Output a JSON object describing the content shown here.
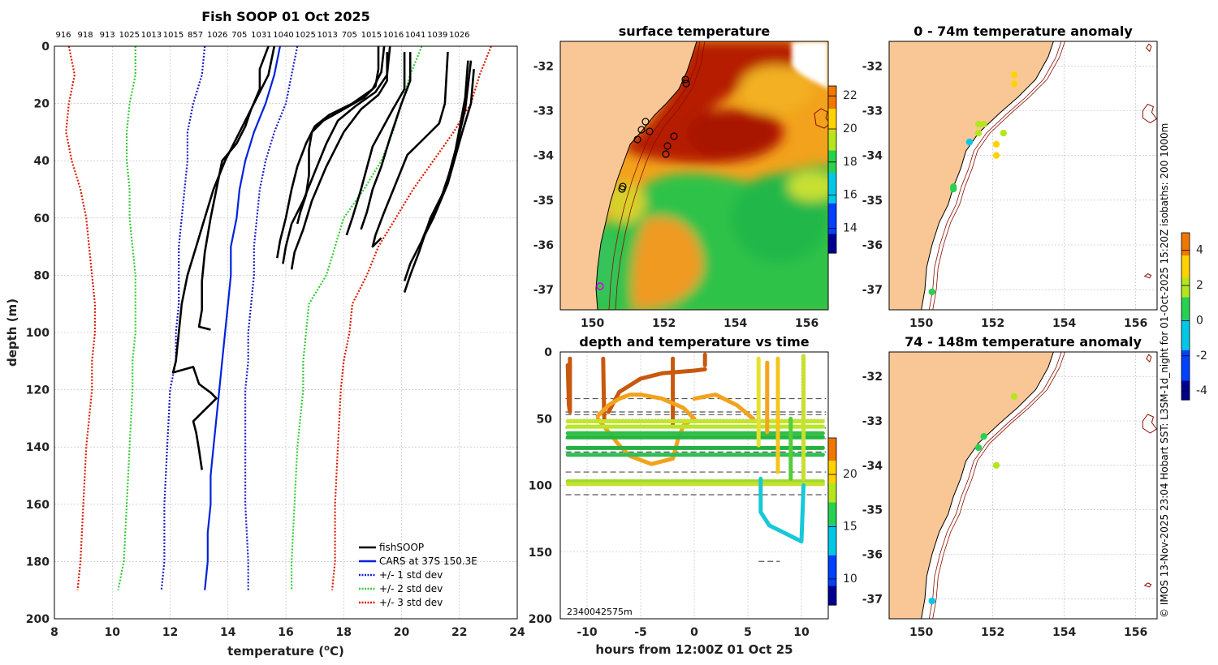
{
  "colors": {
    "land": "#f9c796",
    "cars": "#0022dd",
    "std1": "#1b1bcc",
    "std2": "#33cc33",
    "std3": "#dd1a00",
    "fish": "#000000"
  },
  "main_title": "Fish SOOP 01 Oct 2025",
  "top_numbers": [
    "916",
    "918",
    "913",
    "1025",
    "1013",
    "1015",
    "857",
    "1026",
    "705",
    "1031",
    "1040",
    "1025",
    "1013",
    "705",
    "1015",
    "1016",
    "1041",
    "1039",
    "1026"
  ],
  "legend": {
    "fish": "fishSOOP",
    "cars": "CARS at 37S 150.3E",
    "std1": "+/- 1 std dev",
    "std2": "+/- 2 std dev",
    "std3": "+/- 3 std dev"
  },
  "side_text": "© IMOS 13-Nov-2025 23:04 Hobart SST: L3SM-1d_night for 01-Oct-2025 15:20Z isobaths: 200  1000m",
  "chart_data": [
    {
      "type": "line",
      "title": "Fish SOOP 01 Oct 2025",
      "xlabel": "temperature (°C)",
      "xlabel_pre": "temperature (",
      "xlabel_sup": "o",
      "xlabel_post": "C)",
      "ylabel": "depth (m)",
      "xlim": [
        8,
        24
      ],
      "ylim": [
        0,
        200
      ],
      "y_reversed": true,
      "xticks": [
        "8",
        "10",
        "12",
        "14",
        "16",
        "18",
        "20",
        "22",
        "24"
      ],
      "yticks": [
        "0",
        "20",
        "40",
        "60",
        "80",
        "100",
        "120",
        "140",
        "160",
        "180",
        "200"
      ],
      "cars": [
        [
          15.8,
          0
        ],
        [
          15.6,
          10
        ],
        [
          15.3,
          20
        ],
        [
          14.9,
          30
        ],
        [
          14.6,
          40
        ],
        [
          14.4,
          50
        ],
        [
          14.3,
          60
        ],
        [
          14.1,
          70
        ],
        [
          14.1,
          80
        ],
        [
          14.0,
          90
        ],
        [
          13.9,
          100
        ],
        [
          13.8,
          110
        ],
        [
          13.7,
          120
        ],
        [
          13.6,
          130
        ],
        [
          13.5,
          140
        ],
        [
          13.4,
          150
        ],
        [
          13.4,
          160
        ],
        [
          13.3,
          170
        ],
        [
          13.3,
          180
        ],
        [
          13.2,
          190
        ]
      ],
      "std1": [
        [
          16.4,
          0
        ],
        [
          16.2,
          10
        ],
        [
          16.0,
          20
        ],
        [
          15.6,
          30
        ],
        [
          15.3,
          40
        ],
        [
          15.1,
          50
        ],
        [
          15.0,
          60
        ],
        [
          14.9,
          70
        ],
        [
          14.9,
          80
        ],
        [
          14.8,
          90
        ],
        [
          14.7,
          100
        ],
        [
          14.7,
          110
        ],
        [
          14.6,
          120
        ],
        [
          14.6,
          140
        ],
        [
          14.6,
          160
        ],
        [
          14.7,
          180
        ],
        [
          14.7,
          190
        ]
      ],
      "std1_lo": [
        [
          13.2,
          0
        ],
        [
          13.1,
          10
        ],
        [
          12.8,
          20
        ],
        [
          12.6,
          30
        ],
        [
          12.6,
          40
        ],
        [
          12.5,
          50
        ],
        [
          12.4,
          60
        ],
        [
          12.3,
          70
        ],
        [
          12.3,
          80
        ],
        [
          12.3,
          90
        ],
        [
          12.2,
          100
        ],
        [
          12.2,
          110
        ],
        [
          12.0,
          120
        ],
        [
          11.9,
          140
        ],
        [
          11.8,
          160
        ],
        [
          11.8,
          180
        ],
        [
          11.7,
          190
        ]
      ],
      "std2": [
        [
          20.7,
          0
        ],
        [
          20.3,
          10
        ],
        [
          20.0,
          20
        ],
        [
          19.7,
          30
        ],
        [
          19.3,
          40
        ],
        [
          18.7,
          50
        ],
        [
          18.0,
          60
        ],
        [
          17.7,
          70
        ],
        [
          17.4,
          80
        ],
        [
          16.8,
          90
        ],
        [
          16.7,
          100
        ],
        [
          16.6,
          110
        ],
        [
          16.6,
          120
        ],
        [
          16.4,
          140
        ],
        [
          16.3,
          160
        ],
        [
          16.2,
          180
        ],
        [
          16.2,
          190
        ]
      ],
      "std2_lo": [
        [
          10.8,
          0
        ],
        [
          10.8,
          10
        ],
        [
          10.6,
          20
        ],
        [
          10.5,
          30
        ],
        [
          10.5,
          40
        ],
        [
          10.6,
          50
        ],
        [
          10.6,
          60
        ],
        [
          10.7,
          70
        ],
        [
          10.8,
          80
        ],
        [
          10.8,
          90
        ],
        [
          10.8,
          100
        ],
        [
          10.7,
          110
        ],
        [
          10.7,
          120
        ],
        [
          10.6,
          140
        ],
        [
          10.5,
          160
        ],
        [
          10.4,
          180
        ],
        [
          10.2,
          190
        ]
      ],
      "std3": [
        [
          23.1,
          0
        ],
        [
          22.7,
          10
        ],
        [
          22.4,
          20
        ],
        [
          21.8,
          30
        ],
        [
          21.1,
          40
        ],
        [
          20.4,
          50
        ],
        [
          19.8,
          60
        ],
        [
          19.2,
          70
        ],
        [
          18.8,
          80
        ],
        [
          18.3,
          90
        ],
        [
          18.2,
          100
        ],
        [
          18.0,
          110
        ],
        [
          17.9,
          120
        ],
        [
          17.8,
          140
        ],
        [
          17.7,
          160
        ],
        [
          17.7,
          180
        ],
        [
          17.6,
          190
        ]
      ],
      "std3_lo": [
        [
          8.5,
          0
        ],
        [
          8.7,
          10
        ],
        [
          8.5,
          20
        ],
        [
          8.4,
          30
        ],
        [
          8.6,
          40
        ],
        [
          8.9,
          50
        ],
        [
          9.1,
          60
        ],
        [
          9.2,
          70
        ],
        [
          9.3,
          80
        ],
        [
          9.4,
          90
        ],
        [
          9.4,
          100
        ],
        [
          9.3,
          110
        ],
        [
          9.3,
          120
        ],
        [
          9.1,
          140
        ],
        [
          9.0,
          160
        ],
        [
          8.9,
          180
        ],
        [
          8.8,
          190
        ]
      ],
      "fish": [
        [
          [
            19.2,
            0
          ],
          [
            19.2,
            8
          ],
          [
            19.1,
            14
          ],
          [
            18.7,
            18
          ],
          [
            18.0,
            22
          ],
          [
            17.3,
            26
          ],
          [
            16.9,
            30
          ],
          [
            16.8,
            36
          ],
          [
            16.8,
            45
          ],
          [
            16.7,
            52
          ],
          [
            16.5,
            58
          ],
          [
            16.4,
            62
          ]
        ],
        [
          [
            19.4,
            0
          ],
          [
            19.3,
            9
          ],
          [
            19.0,
            15
          ],
          [
            18.3,
            20
          ],
          [
            17.5,
            24
          ],
          [
            17.0,
            28
          ],
          [
            16.7,
            34
          ],
          [
            16.4,
            42
          ],
          [
            16.2,
            50
          ],
          [
            16.0,
            60
          ],
          [
            15.8,
            68
          ],
          [
            15.7,
            74
          ]
        ],
        [
          [
            19.6,
            0
          ],
          [
            19.5,
            10
          ],
          [
            19.1,
            16
          ],
          [
            18.4,
            21
          ],
          [
            17.8,
            26
          ],
          [
            17.4,
            34
          ],
          [
            17.0,
            44
          ],
          [
            16.6,
            54
          ],
          [
            16.2,
            62
          ],
          [
            16.0,
            70
          ],
          [
            15.9,
            76
          ]
        ],
        [
          [
            19.5,
            2
          ],
          [
            19.5,
            12
          ],
          [
            19.2,
            17
          ],
          [
            18.6,
            22
          ],
          [
            18.0,
            30
          ],
          [
            17.4,
            42
          ],
          [
            16.9,
            54
          ],
          [
            16.6,
            64
          ],
          [
            16.3,
            72
          ],
          [
            16.2,
            78
          ]
        ],
        [
          [
            15.4,
            0
          ],
          [
            15.1,
            8
          ],
          [
            15.1,
            15
          ],
          [
            14.8,
            22
          ],
          [
            14.6,
            28
          ],
          [
            14.3,
            34
          ],
          [
            13.8,
            40
          ],
          [
            13.6,
            50
          ],
          [
            13.4,
            60
          ],
          [
            13.2,
            72
          ],
          [
            13.1,
            82
          ],
          [
            13.1,
            92
          ],
          [
            13.0,
            98
          ],
          [
            13.4,
            99
          ]
        ],
        [
          [
            20.1,
            2
          ],
          [
            20.1,
            15
          ],
          [
            19.7,
            22
          ],
          [
            19.0,
            35
          ],
          [
            18.6,
            50
          ],
          [
            18.3,
            60
          ],
          [
            18.1,
            66
          ]
        ],
        [
          [
            20.3,
            2
          ],
          [
            20.3,
            12
          ],
          [
            20.0,
            20
          ],
          [
            19.6,
            32
          ],
          [
            19.3,
            42
          ],
          [
            19.0,
            50
          ],
          [
            18.8,
            58
          ],
          [
            18.6,
            64
          ]
        ],
        [
          [
            21.6,
            2
          ],
          [
            21.5,
            20
          ],
          [
            21.3,
            27
          ],
          [
            20.8,
            32
          ],
          [
            20.2,
            38
          ],
          [
            19.8,
            48
          ],
          [
            19.4,
            58
          ],
          [
            19.1,
            66
          ],
          [
            19.0,
            70
          ],
          [
            19.3,
            67
          ]
        ],
        [
          [
            22.3,
            5
          ],
          [
            22.2,
            18
          ],
          [
            21.8,
            40
          ],
          [
            21.3,
            55
          ],
          [
            20.9,
            63
          ],
          [
            20.7,
            68
          ]
        ],
        [
          [
            22.4,
            5
          ],
          [
            22.2,
            22
          ],
          [
            21.9,
            35
          ],
          [
            21.5,
            50
          ],
          [
            21.0,
            60
          ],
          [
            20.6,
            72
          ],
          [
            20.3,
            80
          ],
          [
            20.1,
            86
          ]
        ],
        [
          [
            22.5,
            8
          ],
          [
            22.4,
            20
          ],
          [
            22.1,
            30
          ],
          [
            21.6,
            48
          ],
          [
            21.1,
            60
          ],
          [
            20.6,
            70
          ],
          [
            20.3,
            76
          ],
          [
            20.1,
            82
          ]
        ],
        [
          [
            15.6,
            0
          ],
          [
            15.4,
            10
          ],
          [
            14.9,
            20
          ],
          [
            14.4,
            30
          ],
          [
            13.9,
            40
          ],
          [
            13.5,
            50
          ],
          [
            13.2,
            60
          ],
          [
            12.9,
            70
          ],
          [
            12.6,
            80
          ],
          [
            12.4,
            90
          ],
          [
            12.3,
            100
          ],
          [
            12.2,
            110
          ],
          [
            12.1,
            114
          ],
          [
            12.8,
            112
          ],
          [
            13.0,
            118
          ],
          [
            13.4,
            121
          ],
          [
            13.6,
            123
          ],
          [
            13.4,
            125
          ],
          [
            13.1,
            128
          ],
          [
            12.8,
            131
          ],
          [
            12.9,
            135
          ],
          [
            13.0,
            141
          ],
          [
            13.1,
            148
          ]
        ]
      ]
    },
    {
      "type": "heatmap",
      "title": "surface temperature",
      "xticks": [
        "150",
        "152",
        "154",
        "156"
      ],
      "yticks": [
        "-32",
        "-33",
        "-34",
        "-35",
        "-36",
        "-37"
      ],
      "xlim": [
        149.1,
        156.6
      ],
      "ylim": [
        -37.45,
        -31.45
      ],
      "colorbar": {
        "min": 12.5,
        "max": 22.6,
        "ticks": [
          "14",
          "16",
          "18",
          "20",
          "22"
        ]
      }
    },
    {
      "type": "scatter",
      "title": "depth and temperature vs time",
      "xlabel": "hours from 12:00Z 01 Oct 25",
      "xlim": [
        -12.5,
        12.5
      ],
      "ylim": [
        0,
        200
      ],
      "y_reversed": true,
      "xticks": [
        "-10",
        "-5",
        "0",
        "5",
        "10"
      ],
      "yticks": [
        "0",
        "50",
        "100",
        "150",
        "200"
      ],
      "colorbar": {
        "min": 7.5,
        "max": 23.5,
        "ticks": [
          "10",
          "15",
          "20"
        ]
      },
      "corner_label": "2340042575m",
      "dashed_depths": [
        35,
        45,
        47,
        57,
        65,
        75,
        90,
        107,
        157
      ]
    },
    {
      "type": "scatter",
      "title": "0 - 74m temperature anomaly",
      "xticks": [
        "150",
        "152",
        "154",
        "156"
      ],
      "yticks": [
        "-32",
        "-33",
        "-34",
        "-35",
        "-36",
        "-37"
      ],
      "xlim": [
        149.1,
        156.6
      ],
      "ylim": [
        -37.45,
        -31.45
      ],
      "points": [
        [
          152.6,
          -32.2,
          2.6
        ],
        [
          152.6,
          -32.4,
          2.6
        ],
        [
          151.6,
          -33.3,
          1.7
        ],
        [
          151.75,
          -33.3,
          2.2
        ],
        [
          151.6,
          -33.5,
          2.3
        ],
        [
          152.3,
          -33.5,
          2.4
        ],
        [
          151.35,
          -33.7,
          -0.7
        ],
        [
          152.1,
          -33.75,
          3.0
        ],
        [
          152.1,
          -34.0,
          3.2
        ],
        [
          150.9,
          -34.7,
          1.0
        ],
        [
          150.9,
          -34.75,
          1.2
        ],
        [
          150.3,
          -37.05,
          0.9
        ]
      ],
      "colorbar": {
        "min": -4.5,
        "max": 5.0,
        "ticks": [
          "-4",
          "-2",
          "0",
          "2",
          "4"
        ]
      }
    },
    {
      "type": "scatter",
      "title": "74 - 148m temperature anomaly",
      "xticks": [
        "150",
        "152",
        "154",
        "156"
      ],
      "yticks": [
        "-32",
        "-33",
        "-34",
        "-35",
        "-36",
        "-37"
      ],
      "xlim": [
        149.1,
        156.6
      ],
      "ylim": [
        -37.45,
        -31.45
      ],
      "points": [
        [
          152.6,
          -32.45,
          2.4
        ],
        [
          151.75,
          -33.35,
          0.3
        ],
        [
          151.6,
          -33.6,
          0.1
        ],
        [
          152.1,
          -34.0,
          2.5
        ],
        [
          150.3,
          -37.05,
          -0.5
        ]
      ]
    }
  ]
}
